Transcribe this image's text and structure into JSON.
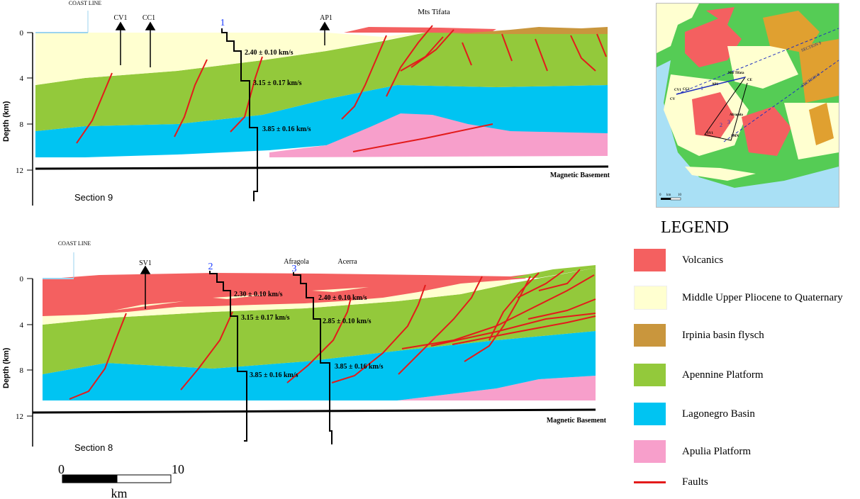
{
  "section9": {
    "title": "Section 9",
    "coast_line": "COAST LINE",
    "ylabel": "Depth (km)",
    "ticks": [
      "0",
      "4",
      "8",
      "12"
    ],
    "wells": [
      "CV1",
      "CC1",
      "AP1"
    ],
    "place": "Mts Tifata",
    "profile_id": "1",
    "velocities": [
      "2.40 ± 0.10 km/s",
      "3.15 ± 0.17 km/s",
      "3.85 ± 0.16 km/s"
    ],
    "basement": "Magnetic Basement"
  },
  "section8": {
    "title": "Section 8",
    "coast_line": "COAST LINE",
    "ylabel": "Depth (km)",
    "ticks": [
      "0",
      "4",
      "8",
      "12"
    ],
    "wells": [
      "SV1"
    ],
    "places": [
      "Afragola",
      "Acerra"
    ],
    "profile_ids": [
      "2",
      "3"
    ],
    "velocities_p2": [
      "2.30 ± 0.10 km/s",
      "3.15 ± 0.17 km/s",
      "3.85 ± 0.16 km/s"
    ],
    "velocities_p3": [
      "2.40 ± 0.10 km/s",
      "2.85 ± 0.10 km/s",
      "3.85 ± 0.16 km/s"
    ],
    "basement": "Magnetic Basement"
  },
  "scale_bar": {
    "start": "0",
    "end": "10",
    "unit": "km"
  },
  "legend": {
    "title": "LEGEND",
    "items": [
      {
        "label": "Volcanics",
        "color": "#f46060"
      },
      {
        "label": "Middle Upper Pliocene to Quaternary",
        "color": "#ffffd0"
      },
      {
        "label": "Irpinia basin flysch",
        "color": "#c9963d"
      },
      {
        "label": "Apennine Platform",
        "color": "#93c93b"
      },
      {
        "label": "Lagonegro Basin",
        "color": "#00c4f2"
      },
      {
        "label": "Apulia Platform",
        "color": "#f79fcb"
      }
    ],
    "faults": {
      "label": "Faults",
      "color": "#e31b1b"
    }
  },
  "inset_map": {
    "section_labels": [
      "SECTION 9",
      "SECTION 8"
    ],
    "site_labels": [
      "CV1",
      "CC1",
      "CV",
      "AP1",
      "Mts Tifata",
      "CE",
      "Afragola",
      "SV1",
      "SMN"
    ],
    "profile_ids": [
      "1",
      "2",
      "3"
    ],
    "scale": {
      "start": "0",
      "unit": "km",
      "end": "10"
    }
  }
}
